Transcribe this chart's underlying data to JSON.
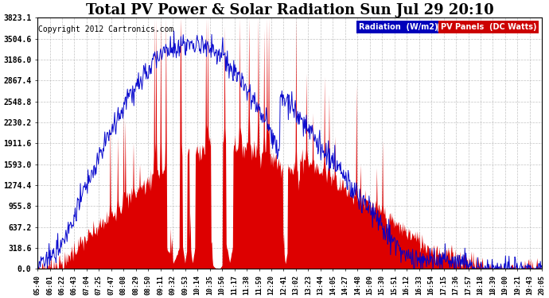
{
  "title": "Total PV Power & Solar Radiation Sun Jul 29 20:10",
  "copyright": "Copyright 2012 Cartronics.com",
  "legend_labels": [
    "Radiation  (W/m2)",
    "PV Panels  (DC Watts)"
  ],
  "legend_bg_colors": [
    "#0000bb",
    "#cc0000"
  ],
  "legend_text_color": "#ffffff",
  "ymax": 3823.1,
  "ymin": 0.0,
  "yticks": [
    0.0,
    318.6,
    637.2,
    955.8,
    1274.4,
    1593.0,
    1911.6,
    2230.2,
    2548.8,
    2867.4,
    3186.0,
    3504.6,
    3823.1
  ],
  "ytick_labels": [
    "0.0",
    "318.6",
    "637.2",
    "955.8",
    "1274.4",
    "1593.0",
    "1911.6",
    "2230.2",
    "2548.8",
    "2867.4",
    "3186.0",
    "3504.6",
    "3823.1"
  ],
  "xtick_labels": [
    "05:40",
    "06:01",
    "06:22",
    "06:43",
    "07:04",
    "07:25",
    "07:47",
    "08:08",
    "08:29",
    "08:50",
    "09:11",
    "09:32",
    "09:53",
    "10:14",
    "10:35",
    "10:56",
    "11:17",
    "11:38",
    "11:59",
    "12:20",
    "12:41",
    "13:02",
    "13:23",
    "13:44",
    "14:05",
    "14:27",
    "14:48",
    "15:09",
    "15:30",
    "15:51",
    "16:12",
    "16:33",
    "16:54",
    "17:15",
    "17:36",
    "17:57",
    "18:18",
    "18:39",
    "19:00",
    "19:21",
    "19:43",
    "20:05"
  ],
  "bg_color": "#ffffff",
  "plot_bg_color": "#ffffff",
  "grid_color": "#aaaaaa",
  "pv_color": "#dd0000",
  "radiation_color": "#0000cc",
  "title_fontsize": 13,
  "copyright_fontsize": 7,
  "tick_fontsize": 7,
  "xtick_fontsize": 6
}
